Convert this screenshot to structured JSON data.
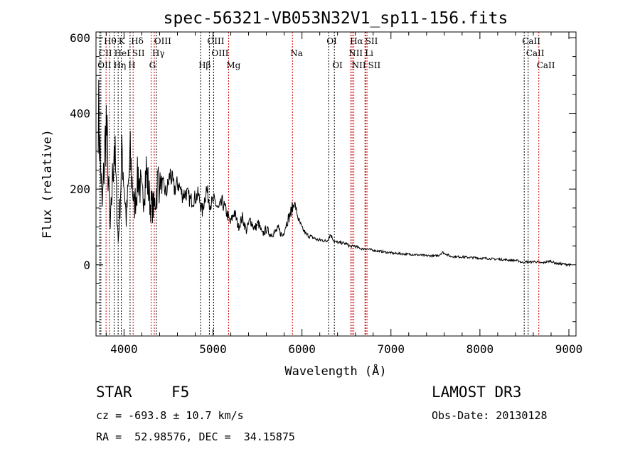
{
  "chart_data": {
    "type": "line",
    "title": "spec-56321-VB053N32V1_sp11-156.fits",
    "xlabel": "Wavelength (Å)",
    "ylabel": "Flux (relative)",
    "xlim": [
      3685,
      9080
    ],
    "ylim": [
      -188,
      615
    ],
    "xticks": [
      4000,
      5000,
      6000,
      7000,
      8000,
      9000
    ],
    "yticks": [
      0,
      200,
      400,
      600
    ],
    "grid": false,
    "series": [
      {
        "name": "spectrum",
        "x_start": 3710,
        "x_step": 45,
        "flux": [
          420,
          150,
          380,
          90,
          330,
          60,
          300,
          120,
          280,
          150,
          240,
          170,
          250,
          160,
          150,
          230,
          210,
          190,
          240,
          200,
          215,
          185,
          190,
          170,
          175,
          185,
          140,
          200,
          160,
          170,
          145,
          165,
          140,
          110,
          140,
          100,
          125,
          90,
          120,
          95,
          110,
          80,
          95,
          80,
          85,
          95,
          75,
          110,
          135,
          165,
          120,
          95,
          80,
          75,
          70,
          65,
          65,
          62,
          80,
          62,
          58,
          58,
          55,
          48,
          50,
          45,
          42,
          42,
          40,
          38,
          36,
          35,
          33,
          32,
          30,
          30,
          29,
          28,
          28,
          27,
          26,
          25,
          24,
          24,
          23,
          25,
          33,
          28,
          22,
          22,
          21,
          21,
          20,
          19,
          19,
          18,
          17,
          17,
          16,
          15,
          15,
          14,
          13,
          12,
          12,
          10,
          6,
          8,
          7,
          9,
          6,
          5,
          8,
          10,
          5,
          3,
          2,
          1,
          0
        ]
      }
    ],
    "lines": [
      {
        "label": "Hθ",
        "wavelength": 3798,
        "row": 1,
        "color": "#cc0000"
      },
      {
        "label": "K",
        "wavelength": 3934,
        "row": 1,
        "color": "#000000"
      },
      {
        "label": "Hδ",
        "wavelength": 4102,
        "row": 1,
        "color": "#cc0000"
      },
      {
        "label": "OIII",
        "wavelength": 4363,
        "row": 1,
        "color": "#000000"
      },
      {
        "label": "OIII",
        "wavelength": 4959,
        "row": 1,
        "color": "#000000"
      },
      {
        "label": "OI",
        "wavelength": 6300,
        "row": 1,
        "color": "#000000"
      },
      {
        "label": "Hα",
        "wavelength": 6563,
        "row": 1,
        "color": "#cc0000"
      },
      {
        "label": "SII",
        "wavelength": 6716,
        "row": 1,
        "color": "#cc0000"
      },
      {
        "label": "CaII",
        "wavelength": 8498,
        "row": 1,
        "color": "#000000"
      },
      {
        "label": "CII",
        "wavelength": 3740,
        "row": 2,
        "color": "#000000"
      },
      {
        "label": "HeI",
        "wavelength": 3889,
        "row": 2,
        "color": "#000000"
      },
      {
        "label": "SII",
        "wavelength": 4068,
        "row": 2,
        "color": "#000000"
      },
      {
        "label": "Hγ",
        "wavelength": 4340,
        "row": 2,
        "color": "#cc0000"
      },
      {
        "label": "OIII",
        "wavelength": 5007,
        "row": 2,
        "color": "#000000"
      },
      {
        "label": "Na",
        "wavelength": 5893,
        "row": 2,
        "color": "#cc0000"
      },
      {
        "label": "NII",
        "wavelength": 6548,
        "row": 2,
        "color": "#cc0000"
      },
      {
        "label": "Li",
        "wavelength": 6708,
        "row": 2,
        "color": "#cc0000"
      },
      {
        "label": "CaII",
        "wavelength": 8542,
        "row": 2,
        "color": "#000000"
      },
      {
        "label": "OII",
        "wavelength": 3727,
        "row": 3,
        "color": "#000000"
      },
      {
        "label": "Hη",
        "wavelength": 3835,
        "row": 3,
        "color": "#cc0000"
      },
      {
        "label": "H",
        "wavelength": 3969,
        "row": 3,
        "color": "#000000"
      },
      {
        "label": "G",
        "wavelength": 4305,
        "row": 3,
        "color": "#cc0000"
      },
      {
        "label": "Hβ",
        "wavelength": 4861,
        "row": 3,
        "color": "#000000"
      },
      {
        "label": "Mg",
        "wavelength": 5175,
        "row": 3,
        "color": "#cc0000"
      },
      {
        "label": "OI",
        "wavelength": 6364,
        "row": 3,
        "color": "#000000"
      },
      {
        "label": "NII",
        "wavelength": 6583,
        "row": 3,
        "color": "#cc0000"
      },
      {
        "label": "SII",
        "wavelength": 6731,
        "row": 3,
        "color": "#cc0000"
      },
      {
        "label": "CaII",
        "wavelength": 8662,
        "row": 3,
        "color": "#cc0000"
      }
    ]
  },
  "info": {
    "class": "STAR",
    "subclass": "F5",
    "survey": "LAMOST DR3",
    "cz": "cz = -693.8 ± 10.7 km/s",
    "obs_date": "Obs-Date: 20130128",
    "coords": "RA =  52.98576, DEC =  34.15875"
  }
}
